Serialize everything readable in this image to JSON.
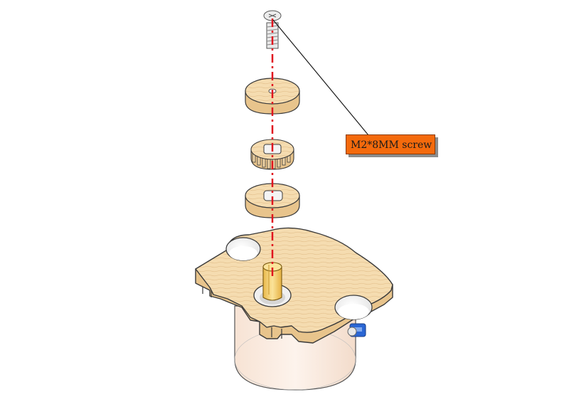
{
  "callout": {
    "label": "M2*8MM screw"
  },
  "colors": {
    "wood": "#f5dcb0",
    "wood_edge": "#e8c48c",
    "outline": "#3a3a3a",
    "axis_line": "#e0141e",
    "callout_fill": "#f46a0c",
    "motor_body": "#fcefe6",
    "shaft": "#f8d272",
    "connector": "#1f5fd0"
  },
  "parts": [
    {
      "name": "screw",
      "icon": "screw-icon"
    },
    {
      "name": "top-washer",
      "icon": "disc-icon"
    },
    {
      "name": "gear",
      "icon": "gear-icon"
    },
    {
      "name": "bottom-washer",
      "icon": "disc-icon"
    },
    {
      "name": "motor-mount-plate",
      "icon": "plate-icon"
    },
    {
      "name": "stepper-motor",
      "icon": "motor-icon"
    }
  ]
}
